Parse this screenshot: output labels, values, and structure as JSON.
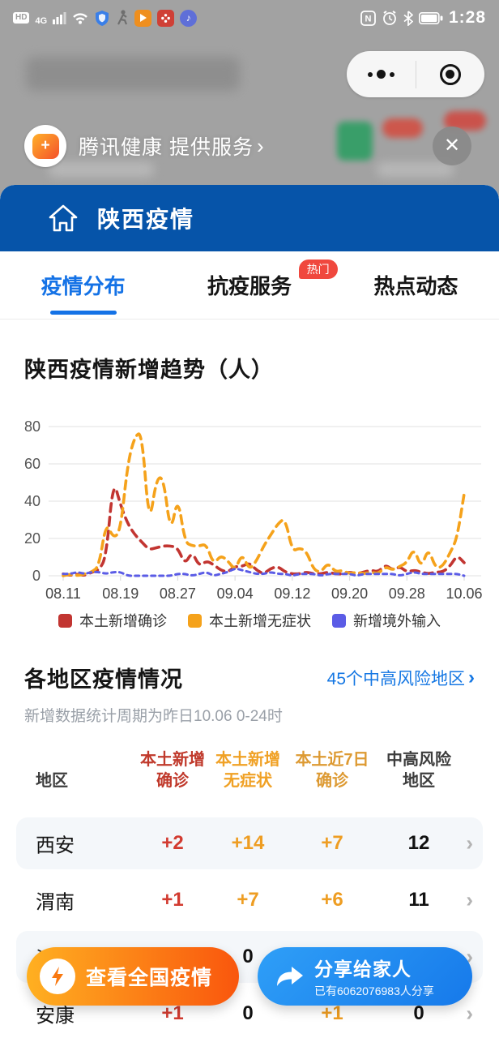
{
  "status_bar": {
    "hd": "HD",
    "network": "4G",
    "nfc": "N",
    "time": "1:28"
  },
  "service_banner": {
    "logo_glyph": "+",
    "text": "腾讯健康 提供服务",
    "chevron": "›",
    "close": "✕"
  },
  "header": {
    "title": "陕西疫情"
  },
  "tabs": [
    {
      "label": "疫情分布",
      "active": true
    },
    {
      "label": "抗疫服务",
      "badge": "热门"
    },
    {
      "label": "热点动态"
    }
  ],
  "chart_section": {
    "title": "陕西疫情新增趋势（人）"
  },
  "chart_data": {
    "type": "line",
    "title": "陕西疫情新增趋势（人）",
    "x_start": "08.11",
    "x_end": "10.06",
    "x_tick_labels": [
      "08.11",
      "08.19",
      "08.27",
      "09.04",
      "09.12",
      "09.20",
      "09.28",
      "10.06"
    ],
    "days": 57,
    "ylim": [
      0,
      80
    ],
    "y_ticks": [
      0,
      20,
      40,
      60,
      80
    ],
    "grid": true,
    "line_style": "dashed",
    "legend_position": "bottom",
    "series": [
      {
        "name": "本土新增确诊",
        "color": "#c23531",
        "values": [
          1,
          0,
          1,
          0,
          2,
          3,
          10,
          52,
          38,
          28,
          22,
          18,
          14,
          15,
          16,
          16,
          15,
          6,
          13,
          5,
          8,
          6,
          3,
          2,
          5,
          5,
          7,
          3,
          1,
          4,
          5,
          2,
          1,
          1,
          2,
          1,
          1,
          2,
          1,
          1,
          2,
          1,
          2,
          3,
          2,
          6,
          3,
          5,
          2,
          3,
          2,
          1,
          2,
          2,
          5,
          11,
          7
        ]
      },
      {
        "name": "本土新增无症状",
        "color": "#f5a21b",
        "values": [
          0,
          1,
          0,
          1,
          2,
          5,
          29,
          20,
          24,
          60,
          75,
          77,
          26,
          52,
          53,
          22,
          43,
          18,
          16,
          16,
          17,
          6,
          11,
          8,
          3,
          12,
          3,
          8,
          16,
          22,
          28,
          31,
          13,
          15,
          13,
          3,
          2,
          7,
          2,
          3,
          1,
          2,
          1,
          2,
          1,
          5,
          3,
          5,
          7,
          15,
          4,
          15,
          4,
          5,
          12,
          20,
          44
        ]
      },
      {
        "name": "新增境外输入",
        "color": "#5b5ce6",
        "values": [
          1,
          1,
          2,
          1,
          2,
          2,
          1,
          2,
          2,
          0,
          0,
          0,
          0,
          0,
          0,
          0,
          1,
          1,
          0,
          1,
          2,
          0,
          1,
          2,
          4,
          3,
          2,
          1,
          1,
          2,
          1,
          1,
          0,
          1,
          1,
          1,
          0,
          1,
          1,
          1,
          1,
          0,
          1,
          1,
          1,
          1,
          1,
          0,
          1,
          2,
          1,
          1,
          1,
          1,
          1,
          1,
          0
        ]
      }
    ]
  },
  "region_section": {
    "title": "各地区疫情情况",
    "link": "45个中高风险地区",
    "link_chevron": "›",
    "subtitle": "新增数据统计周期为昨日10.06 0-24时"
  },
  "table": {
    "headers": [
      {
        "l1": "地区",
        "l2": ""
      },
      {
        "l1": "本土新增",
        "l2": "确诊"
      },
      {
        "l1": "本土新增",
        "l2": "无症状"
      },
      {
        "l1": "本土近7日",
        "l2": "确诊"
      },
      {
        "l1": "中高风险",
        "l2": "地区"
      }
    ],
    "chevron": "›",
    "rows": [
      {
        "region": "西安",
        "confirmed": "+2",
        "asymptomatic": "+14",
        "last7": "+7",
        "risk": "12"
      },
      {
        "region": "渭南",
        "confirmed": "+1",
        "asymptomatic": "+7",
        "last7": "+6",
        "risk": "11"
      },
      {
        "region": "汉中",
        "confirmed": "",
        "asymptomatic": "0",
        "last7": "",
        "risk": ""
      },
      {
        "region": "安康",
        "confirmed": "+1",
        "asymptomatic": "0",
        "last7": "+1",
        "risk": "0"
      }
    ]
  },
  "buttons": {
    "national": {
      "label": "查看全国疫情"
    },
    "share": {
      "label": "分享给家人",
      "sub": "已有6062076983人分享"
    }
  },
  "colors": {
    "appbar_blue": "#0654a9",
    "accent_blue": "#1472e6",
    "badge_red": "#f0483e",
    "confirmed_red": "#c23531",
    "asymptomatic_orange": "#f5a21b",
    "imported_purple": "#5b5ce6",
    "row_alt_bg": "#f4f7fa",
    "fab_orange_start": "#ffb021",
    "fab_orange_end": "#f9560d",
    "fab_blue": "#1e86ee"
  }
}
